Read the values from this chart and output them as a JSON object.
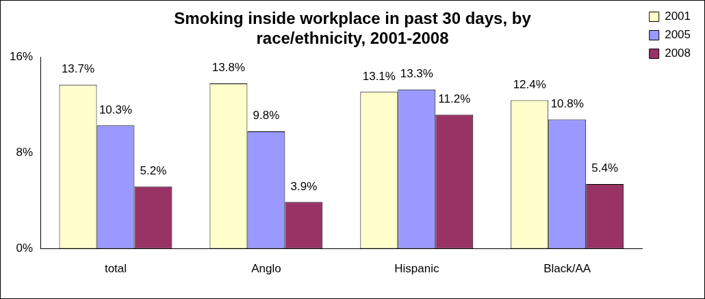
{
  "chart_data": {
    "type": "bar",
    "title": "Smoking inside workplace in past 30 days, by race/ethnicity, 2001-2008",
    "categories": [
      "total",
      "Anglo",
      "Hispanic",
      "Black/AA"
    ],
    "series": [
      {
        "name": "2001",
        "color": "#ffffcc",
        "values": [
          13.7,
          13.8,
          13.1,
          12.4
        ],
        "value_labels": [
          "13.7%",
          "13.8%",
          "13.1%",
          "12.4%"
        ]
      },
      {
        "name": "2005",
        "color": "#9999ff",
        "values": [
          10.3,
          9.8,
          13.3,
          10.8
        ],
        "value_labels": [
          "10.3%",
          "9.8%",
          "13.3%",
          "10.8%"
        ]
      },
      {
        "name": "2008",
        "color": "#993366",
        "values": [
          5.2,
          3.9,
          11.2,
          5.4
        ],
        "value_labels": [
          "5.2%",
          "3.9%",
          "11.2%",
          "5.4%"
        ]
      }
    ],
    "ylim": [
      0,
      16
    ],
    "yticks": [
      {
        "value": 0,
        "label": "0%"
      },
      {
        "value": 8,
        "label": "8%"
      },
      {
        "value": 16,
        "label": "16%"
      }
    ],
    "grid": false,
    "legend": "top right"
  }
}
